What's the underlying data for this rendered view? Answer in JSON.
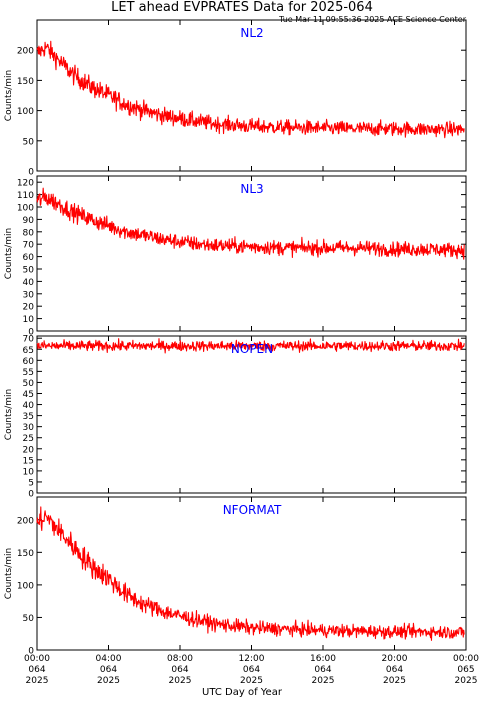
{
  "title": "LET ahead EVPRATES Data for 2025-064",
  "timestamp": "Tue Mar 11 09:55:36 2025 ACE Science Center",
  "xlabel": "UTC Day of Year",
  "colors": {
    "series": "#ff0000",
    "panel_label": "#0000ff",
    "axis": "#000000"
  },
  "chart_data": [
    {
      "type": "line",
      "series": [
        {
          "name": "NL2",
          "trend": {
            "t": [
              0,
              0.5,
              1,
              2,
              3,
              4,
              5,
              6,
              7,
              8,
              9,
              10,
              12,
              14,
              16,
              18,
              20,
              22,
              23.9
            ],
            "y": [
              195,
              205,
              190,
              160,
              140,
              125,
              110,
              100,
              92,
              87,
              82,
              78,
              74,
              72,
              71,
              70,
              70,
              69,
              69
            ]
          },
          "noise": 8
        }
      ],
      "ylabel": "Counts/min",
      "ylim": [
        0,
        250
      ],
      "yticks": [
        0,
        50,
        100,
        150,
        200
      ],
      "ytick_labels": [
        "0",
        "50",
        "100",
        "150",
        "200"
      ]
    },
    {
      "type": "line",
      "series": [
        {
          "name": "NL3",
          "trend": {
            "t": [
              0,
              0.5,
              1,
              2,
              3,
              4,
              5,
              6,
              7,
              8,
              9,
              10,
              12,
              14,
              16,
              18,
              20,
              22,
              23.9
            ],
            "y": [
              105,
              108,
              104,
              96,
              90,
              85,
              80,
              77,
              74,
              72,
              70,
              69,
              68,
              67,
              67,
              67,
              66,
              66,
              65
            ]
          },
          "noise": 4
        }
      ],
      "ylabel": "Counts/min",
      "ylim": [
        0,
        125
      ],
      "yticks": [
        0,
        10,
        20,
        30,
        40,
        50,
        60,
        70,
        80,
        90,
        100,
        110,
        120
      ],
      "ytick_labels": [
        "0",
        "10",
        "20",
        "30",
        "40",
        "50",
        "60",
        "70",
        "80",
        "90",
        "100",
        "110",
        "120"
      ]
    },
    {
      "type": "line",
      "series": [
        {
          "name": "NOPEN",
          "trend": {
            "t": [
              0,
              23.9
            ],
            "y": [
              66.5,
              66.5
            ]
          },
          "noise": 1.6
        }
      ],
      "ylabel": "Counts/min",
      "ylim": [
        0,
        71
      ],
      "yticks": [
        0,
        5,
        10,
        15,
        20,
        25,
        30,
        35,
        40,
        45,
        50,
        55,
        60,
        65,
        70
      ],
      "ytick_labels": [
        "0",
        "5",
        "10",
        "15",
        "20",
        "25",
        "30",
        "35",
        "40",
        "45",
        "50",
        "55",
        "60",
        "65",
        "70"
      ]
    },
    {
      "type": "line",
      "series": [
        {
          "name": "NFORMAT",
          "trend": {
            "t": [
              0,
              0.5,
              1,
              2,
              3,
              4,
              5,
              6,
              7,
              8,
              9,
              10,
              12,
              14,
              16,
              18,
              20,
              22,
              23.9
            ],
            "y": [
              195,
              205,
              190,
              160,
              130,
              110,
              85,
              70,
              60,
              52,
              46,
              40,
              34,
              32,
              30,
              29,
              28,
              28,
              27
            ]
          },
          "noise": 9
        }
      ],
      "ylabel": "Counts/min",
      "ylim": [
        0,
        235
      ],
      "yticks": [
        0,
        50,
        100,
        150,
        200
      ],
      "ytick_labels": [
        "0",
        "50",
        "100",
        "150",
        "200"
      ]
    }
  ],
  "x_axis": {
    "range": [
      0,
      24
    ],
    "ticks": [
      {
        "t": 0,
        "time": "00:00",
        "day": "064",
        "year": "2025"
      },
      {
        "t": 4,
        "time": "04:00",
        "day": "064",
        "year": "2025"
      },
      {
        "t": 8,
        "time": "08:00",
        "day": "064",
        "year": "2025"
      },
      {
        "t": 12,
        "time": "12:00",
        "day": "064",
        "year": "2025"
      },
      {
        "t": 16,
        "time": "16:00",
        "day": "064",
        "year": "2025"
      },
      {
        "t": 20,
        "time": "20:00",
        "day": "064",
        "year": "2025"
      },
      {
        "t": 24,
        "time": "00:00",
        "day": "065",
        "year": "2025"
      }
    ]
  }
}
